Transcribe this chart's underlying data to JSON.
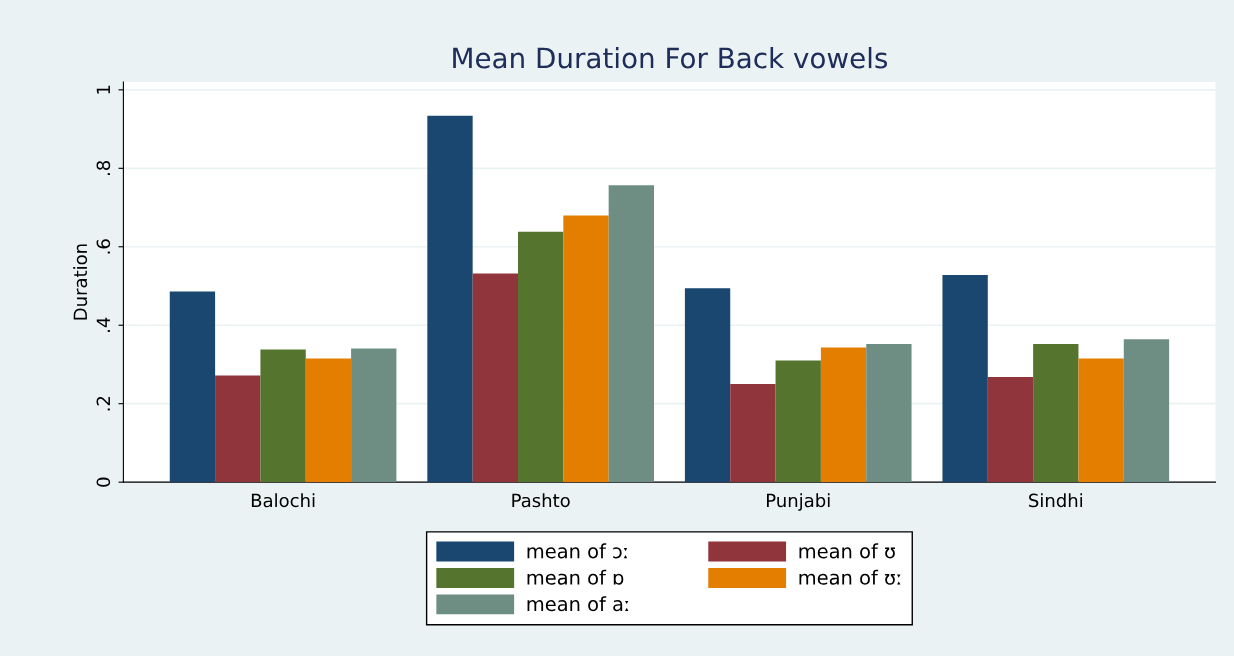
{
  "chart_data": {
    "type": "bar",
    "title": "Mean Duration For Back vowels",
    "ylabel": "Duration",
    "categories": [
      "Balochi",
      "Pashto",
      "Punjabi",
      "Sindhi"
    ],
    "series": [
      {
        "name": "mean of ɔː",
        "color": "#1a476f",
        "values": [
          0.486,
          0.934,
          0.494,
          0.528
        ]
      },
      {
        "name": "mean of ʊ",
        "color": "#90353b",
        "values": [
          0.272,
          0.532,
          0.25,
          0.268
        ]
      },
      {
        "name": "mean of ɒ",
        "color": "#55752f",
        "values": [
          0.338,
          0.638,
          0.31,
          0.352
        ]
      },
      {
        "name": "mean of ʊː",
        "color": "#e37e00",
        "values": [
          0.315,
          0.68,
          0.343,
          0.315
        ]
      },
      {
        "name": "mean of aː",
        "color": "#6e8e84",
        "values": [
          0.341,
          0.757,
          0.352,
          0.364
        ]
      }
    ],
    "ylim": [
      0,
      1.02
    ],
    "yticks": [
      0,
      {
        "value": 0.2,
        "label": ".2"
      },
      {
        "value": 0.4,
        "label": ".4"
      },
      {
        "value": 0.6,
        "label": ".6"
      },
      {
        "value": 0.8,
        "label": ".8"
      },
      1
    ],
    "grid": "y",
    "legend": "bottom"
  }
}
